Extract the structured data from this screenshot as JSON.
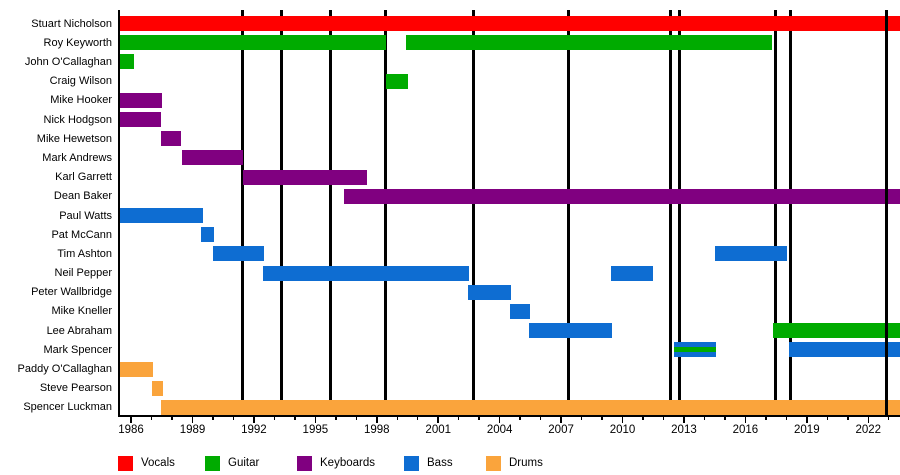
{
  "colors": {
    "Vocals": "#ff0000",
    "Guitar": "#00ab00",
    "Keyboards": "#800080",
    "Bass": "#0e6dd2",
    "Drums": "#faa43c",
    "event_line": "#000000",
    "axis": "#000000",
    "background": "#ffffff"
  },
  "chart_data": {
    "type": "timeline",
    "title": "",
    "x_axis": {
      "start": 1985.46,
      "end": 2023.55,
      "major_ticks": [
        1986,
        1989,
        1992,
        1995,
        1998,
        2001,
        2004,
        2007,
        2010,
        2013,
        2016,
        2019,
        2022
      ],
      "minor_tick_years": [
        1986,
        1987,
        1988,
        1989,
        1990,
        1991,
        1992,
        1993,
        1994,
        1995,
        1996,
        1997,
        1998,
        1999,
        2000,
        2001,
        2002,
        2003,
        2004,
        2005,
        2006,
        2007,
        2008,
        2009,
        2010,
        2011,
        2012,
        2013,
        2014,
        2015,
        2016,
        2017,
        2018,
        2019,
        2020,
        2021,
        2022,
        2023
      ],
      "grid": false
    },
    "legend": [
      {
        "label": "Vocals",
        "role": "Vocals"
      },
      {
        "label": "Guitar",
        "role": "Guitar"
      },
      {
        "label": "Keyboards",
        "role": "Keyboards"
      },
      {
        "label": "Bass",
        "role": "Bass"
      },
      {
        "label": "Drums",
        "role": "Drums"
      }
    ],
    "event_lines": [
      1991.46,
      1993.37,
      1995.76,
      1998.44,
      2002.73,
      2007.37,
      2012.34,
      2012.78,
      2017.46,
      2018.2,
      2022.88
    ],
    "members": [
      {
        "name": "Stuart Nicholson",
        "segments": [
          {
            "role": "Vocals",
            "start": 1985.46,
            "end": 2023.55
          }
        ]
      },
      {
        "name": "Roy Keyworth",
        "segments": [
          {
            "role": "Guitar",
            "start": 1985.46,
            "end": 1998.45
          },
          {
            "role": "Guitar",
            "start": 1999.45,
            "end": 2017.3
          }
        ]
      },
      {
        "name": "John O'Callaghan",
        "segments": [
          {
            "role": "Guitar",
            "start": 1985.46,
            "end": 1986.15
          }
        ]
      },
      {
        "name": "Craig Wilson",
        "segments": [
          {
            "role": "Guitar",
            "start": 1998.45,
            "end": 1999.5
          }
        ]
      },
      {
        "name": "Mike Hooker",
        "segments": [
          {
            "role": "Keyboards",
            "start": 1985.46,
            "end": 1987.5
          }
        ]
      },
      {
        "name": "Nick Hodgson",
        "segments": [
          {
            "role": "Keyboards",
            "start": 1985.46,
            "end": 1987.45
          }
        ]
      },
      {
        "name": "Mike Hewetson",
        "segments": [
          {
            "role": "Keyboards",
            "start": 1987.45,
            "end": 1988.45
          }
        ]
      },
      {
        "name": "Mark Andrews",
        "segments": [
          {
            "role": "Keyboards",
            "start": 1988.5,
            "end": 1991.45
          }
        ]
      },
      {
        "name": "Karl Garrett",
        "segments": [
          {
            "role": "Keyboards",
            "start": 1991.45,
            "end": 1997.5
          }
        ]
      },
      {
        "name": "Dean Baker",
        "segments": [
          {
            "role": "Keyboards",
            "start": 1996.4,
            "end": 2023.55
          }
        ]
      },
      {
        "name": "Paul Watts",
        "segments": [
          {
            "role": "Bass",
            "start": 1985.46,
            "end": 1989.5
          }
        ]
      },
      {
        "name": "Pat McCann",
        "segments": [
          {
            "role": "Bass",
            "start": 1989.4,
            "end": 1990.05
          }
        ]
      },
      {
        "name": "Tim Ashton",
        "segments": [
          {
            "role": "Bass",
            "start": 1990.0,
            "end": 1992.5
          },
          {
            "role": "Bass",
            "start": 2014.5,
            "end": 2018.05
          }
        ]
      },
      {
        "name": "Neil Pepper",
        "segments": [
          {
            "role": "Bass",
            "start": 1992.45,
            "end": 2002.5
          },
          {
            "role": "Bass",
            "start": 2009.45,
            "end": 2011.5
          }
        ]
      },
      {
        "name": "Peter Wallbridge",
        "segments": [
          {
            "role": "Bass",
            "start": 2002.45,
            "end": 2004.55
          }
        ]
      },
      {
        "name": "Mike Kneller",
        "segments": [
          {
            "role": "Bass",
            "start": 2004.5,
            "end": 2005.5
          }
        ]
      },
      {
        "name": "Lee Abraham",
        "segments": [
          {
            "role": "Bass",
            "start": 2005.45,
            "end": 2009.5
          },
          {
            "role": "Guitar",
            "start": 2017.35,
            "end": 2023.55
          }
        ]
      },
      {
        "name": "Mark Spencer",
        "segments": [
          {
            "role": "Bass",
            "stripe_role": "Guitar",
            "start": 2012.5,
            "end": 2014.55
          },
          {
            "role": "Bass",
            "start": 2018.15,
            "end": 2023.55
          }
        ]
      },
      {
        "name": "Paddy O'Callaghan",
        "segments": [
          {
            "role": "Drums",
            "start": 1985.46,
            "end": 1987.05
          }
        ]
      },
      {
        "name": "Steve Pearson",
        "segments": [
          {
            "role": "Drums",
            "start": 1987.0,
            "end": 1987.55
          }
        ]
      },
      {
        "name": "Spencer Luckman",
        "segments": [
          {
            "role": "Drums",
            "start": 1987.45,
            "end": 2023.55
          }
        ]
      }
    ]
  }
}
